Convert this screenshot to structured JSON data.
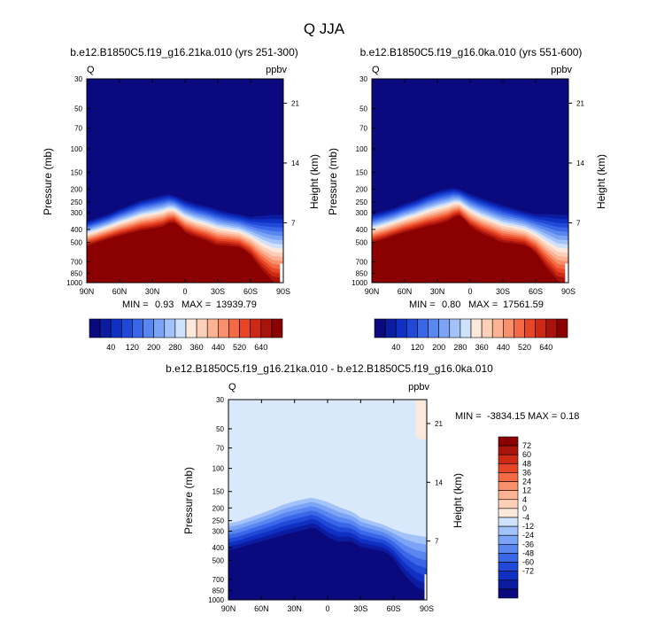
{
  "title": "Q JJA",
  "colors": {
    "neg": [
      "#0a0a7e",
      "#0b1ca0",
      "#1030c4",
      "#2149d8",
      "#3a66e8",
      "#5a86f0",
      "#7ca4f6",
      "#a2c2fa",
      "#cfe2fc"
    ],
    "pos": [
      "#fde9dc",
      "#fcd0b8",
      "#fbb393",
      "#f8906c",
      "#f36a44",
      "#e64626",
      "#cc2a14",
      "#a8140b",
      "#8b0000"
    ],
    "seq": [
      "#0a0a7e",
      "#0b1ca0",
      "#1030c4",
      "#2149d8",
      "#3a66e8",
      "#5a86f0",
      "#7ca4f6",
      "#a2c2fa",
      "#cfe2fc",
      "#fde9dc",
      "#fcd0b8",
      "#fbb393",
      "#f8906c",
      "#f36a44",
      "#e64626",
      "#cc2a14",
      "#a8140b",
      "#8b0000"
    ]
  },
  "chart_data": [
    {
      "id": "p1",
      "type": "contour",
      "title": "b.e12.B1850C5.f19_g16.21ka.010 (yrs 251-300)",
      "left_label": "Q",
      "units": "ppbv",
      "xlabel": "",
      "ylabel": "Pressure (mb)",
      "ylabel_right": "Height (km)",
      "x_ticks": [
        "90N",
        "60N",
        "30N",
        "0",
        "30S",
        "60S",
        "90S"
      ],
      "y_ticks": [
        "30",
        "50",
        "70",
        "100",
        "150",
        "200",
        "250",
        "300",
        "400",
        "500",
        "700",
        "850",
        "1000"
      ],
      "height_ticks": [
        "21",
        "14",
        "7"
      ],
      "min_label": "MIN =",
      "min_value": "0.93",
      "max_label": "MAX =",
      "max_value": "13939.79",
      "colorbar_labels": [
        "40",
        "120",
        "200",
        "280",
        "360",
        "440",
        "520",
        "640"
      ],
      "tropopause_hpa": [
        [
          90,
          340
        ],
        [
          80,
          320
        ],
        [
          70,
          300
        ],
        [
          60,
          275
        ],
        [
          50,
          255
        ],
        [
          40,
          235
        ],
        [
          30,
          225
        ],
        [
          20,
          215
        ],
        [
          15,
          212
        ],
        [
          10,
          218
        ],
        [
          0,
          235
        ],
        [
          -10,
          250
        ],
        [
          -20,
          260
        ],
        [
          -30,
          275
        ],
        [
          -40,
          290
        ],
        [
          -50,
          300
        ],
        [
          -60,
          310
        ],
        [
          -70,
          300
        ],
        [
          -80,
          290
        ],
        [
          -90,
          290
        ]
      ],
      "saturated_top_hpa": [
        [
          90,
          530
        ],
        [
          80,
          500
        ],
        [
          70,
          470
        ],
        [
          60,
          445
        ],
        [
          50,
          425
        ],
        [
          40,
          405
        ],
        [
          30,
          395
        ],
        [
          20,
          380
        ],
        [
          15,
          360
        ],
        [
          10,
          355
        ],
        [
          5,
          375
        ],
        [
          0,
          420
        ],
        [
          -5,
          440
        ],
        [
          -10,
          455
        ],
        [
          -15,
          470
        ],
        [
          -20,
          485
        ],
        [
          -25,
          510
        ],
        [
          -30,
          525
        ],
        [
          -40,
          530
        ],
        [
          -50,
          545
        ],
        [
          -55,
          570
        ],
        [
          -60,
          620
        ],
        [
          -65,
          700
        ],
        [
          -70,
          790
        ],
        [
          -75,
          870
        ],
        [
          -80,
          960
        ],
        [
          -82,
          1000
        ]
      ],
      "gradient_pressure_scale": 1.5
    },
    {
      "id": "p2",
      "type": "contour",
      "title": "b.e12.B1850C5.f19_g16.0ka.010 (yrs 551-600)",
      "left_label": "Q",
      "units": "ppbv",
      "xlabel": "",
      "ylabel": "Pressure (mb)",
      "ylabel_right": "Height (km)",
      "x_ticks": [
        "90N",
        "60N",
        "30N",
        "0",
        "30S",
        "60S",
        "90S"
      ],
      "y_ticks": [
        "30",
        "50",
        "70",
        "100",
        "150",
        "200",
        "250",
        "300",
        "400",
        "500",
        "700",
        "850",
        "1000"
      ],
      "height_ticks": [
        "21",
        "14",
        "7"
      ],
      "min_label": "MIN =",
      "min_value": "0.80",
      "max_label": "MAX =",
      "max_value": "17561.59",
      "colorbar_labels": [
        "40",
        "120",
        "200",
        "280",
        "360",
        "440",
        "520",
        "640"
      ],
      "tropopause_hpa": [
        [
          90,
          300
        ],
        [
          80,
          285
        ],
        [
          70,
          270
        ],
        [
          60,
          250
        ],
        [
          50,
          235
        ],
        [
          40,
          215
        ],
        [
          30,
          200
        ],
        [
          20,
          192
        ],
        [
          15,
          190
        ],
        [
          10,
          195
        ],
        [
          0,
          210
        ],
        [
          -10,
          225
        ],
        [
          -20,
          240
        ],
        [
          -30,
          255
        ],
        [
          -40,
          270
        ],
        [
          -50,
          285
        ],
        [
          -60,
          295
        ],
        [
          -70,
          290
        ],
        [
          -80,
          290
        ],
        [
          -90,
          290
        ]
      ],
      "saturated_top_hpa": [
        [
          90,
          500
        ],
        [
          80,
          475
        ],
        [
          70,
          445
        ],
        [
          60,
          420
        ],
        [
          50,
          400
        ],
        [
          40,
          380
        ],
        [
          30,
          365
        ],
        [
          20,
          345
        ],
        [
          15,
          325
        ],
        [
          10,
          315
        ],
        [
          5,
          335
        ],
        [
          0,
          380
        ],
        [
          -5,
          405
        ],
        [
          -10,
          425
        ],
        [
          -15,
          445
        ],
        [
          -20,
          460
        ],
        [
          -25,
          485
        ],
        [
          -30,
          500
        ],
        [
          -40,
          510
        ],
        [
          -50,
          525
        ],
        [
          -55,
          550
        ],
        [
          -60,
          600
        ],
        [
          -65,
          680
        ],
        [
          -70,
          770
        ],
        [
          -75,
          860
        ],
        [
          -80,
          960
        ],
        [
          -83,
          1000
        ]
      ],
      "gradient_pressure_scale": 1.5
    },
    {
      "id": "p3",
      "type": "contour",
      "title": "b.e12.B1850C5.f19_g16.21ka.010 - b.e12.B1850C5.f19_g16.0ka.010",
      "left_label": "Q",
      "units": "ppbv",
      "xlabel": "",
      "ylabel": "Pressure (mb)",
      "ylabel_right": "Height (km)",
      "x_ticks": [
        "90N",
        "60N",
        "30N",
        "0",
        "30S",
        "60S",
        "90S"
      ],
      "y_ticks": [
        "30",
        "50",
        "70",
        "100",
        "150",
        "200",
        "250",
        "300",
        "400",
        "500",
        "700",
        "850",
        "1000"
      ],
      "height_ticks": [
        "21",
        "14",
        "7"
      ],
      "min_label": "MIN =",
      "min_value": "-3834.15",
      "max_label": "MAX =",
      "max_value": "0.18",
      "colorbar_labels": [
        "72",
        "60",
        "48",
        "36",
        "24",
        "12",
        "4",
        "0",
        "-4",
        "-12",
        "-24",
        "-36",
        "-48",
        "-60",
        "-72"
      ],
      "neg_region_top_hpa": [
        [
          90,
          245
        ],
        [
          80,
          235
        ],
        [
          70,
          220
        ],
        [
          60,
          205
        ],
        [
          50,
          190
        ],
        [
          40,
          175
        ],
        [
          30,
          165
        ],
        [
          20,
          158
        ],
        [
          15,
          155
        ],
        [
          10,
          158
        ],
        [
          0,
          165
        ],
        [
          -10,
          180
        ],
        [
          -20,
          195
        ],
        [
          -25,
          205
        ],
        [
          -30,
          220
        ],
        [
          -40,
          235
        ],
        [
          -50,
          250
        ],
        [
          -55,
          260
        ],
        [
          -60,
          270
        ],
        [
          -70,
          280
        ],
        [
          -80,
          285
        ],
        [
          -90,
          290
        ]
      ],
      "saturated_top_hpa": [
        [
          90,
          450
        ],
        [
          80,
          430
        ],
        [
          70,
          405
        ],
        [
          60,
          385
        ],
        [
          50,
          365
        ],
        [
          40,
          345
        ],
        [
          30,
          330
        ],
        [
          20,
          315
        ],
        [
          15,
          305
        ],
        [
          10,
          310
        ],
        [
          5,
          330
        ],
        [
          0,
          365
        ],
        [
          -5,
          385
        ],
        [
          -10,
          395
        ],
        [
          -15,
          380
        ],
        [
          -20,
          385
        ],
        [
          -25,
          400
        ],
        [
          -30,
          425
        ],
        [
          -40,
          440
        ],
        [
          -50,
          455
        ],
        [
          -55,
          480
        ],
        [
          -60,
          530
        ],
        [
          -65,
          620
        ],
        [
          -70,
          720
        ],
        [
          -75,
          820
        ],
        [
          -80,
          900
        ],
        [
          -85,
          960
        ],
        [
          -90,
          1000
        ]
      ],
      "pos_patch": {
        "lat_from": -80,
        "lat_to": -90,
        "p_top": 30,
        "p_bottom": 60
      }
    }
  ]
}
